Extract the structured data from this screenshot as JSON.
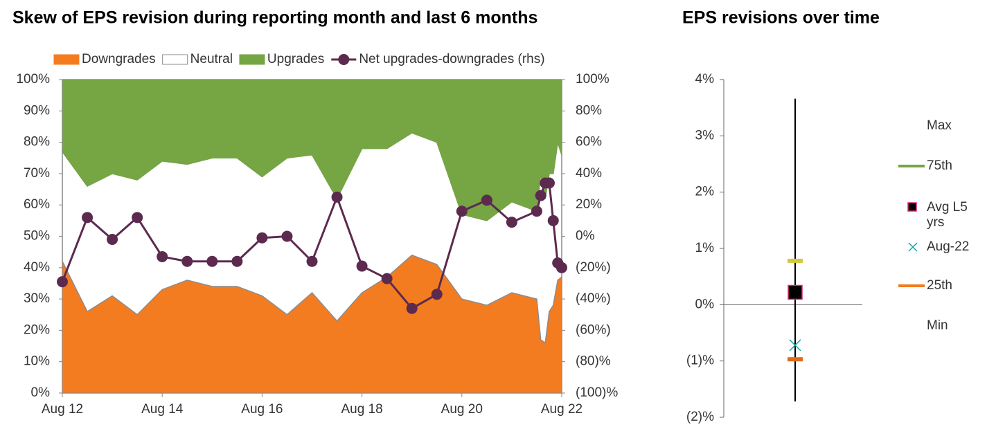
{
  "chart_data": [
    {
      "type": "stacked_area",
      "title": "Skew of EPS revision during reporting month and last 6 months",
      "x": [
        2012,
        2012.5,
        2013,
        2013.5,
        2014,
        2014.5,
        2015,
        2015.5,
        2016,
        2016.5,
        2017,
        2017.5,
        2018,
        2018.5,
        2019,
        2019.5,
        2020,
        2020.5,
        2021,
        2021.5,
        2021.58,
        2021.67,
        2021.75,
        2021.83,
        2021.92,
        2022
      ],
      "xlim": [
        2012,
        2022
      ],
      "xticks": [
        {
          "value": 2012,
          "label": "Aug 12"
        },
        {
          "value": 2014,
          "label": "Aug 14"
        },
        {
          "value": 2016,
          "label": "Aug 16"
        },
        {
          "value": 2018,
          "label": "Aug 18"
        },
        {
          "value": 2020,
          "label": "Aug 20"
        },
        {
          "value": 2022,
          "label": "Aug 22"
        }
      ],
      "ylim": [
        0,
        100
      ],
      "yticks": [
        {
          "value": 0,
          "label": "0%"
        },
        {
          "value": 10,
          "label": "10%"
        },
        {
          "value": 20,
          "label": "20%"
        },
        {
          "value": 30,
          "label": "30%"
        },
        {
          "value": 40,
          "label": "40%"
        },
        {
          "value": 50,
          "label": "50%"
        },
        {
          "value": 60,
          "label": "60%"
        },
        {
          "value": 70,
          "label": "70%"
        },
        {
          "value": 80,
          "label": "80%"
        },
        {
          "value": 90,
          "label": "90%"
        },
        {
          "value": 100,
          "label": "100%"
        }
      ],
      "y2lim": [
        -100,
        100
      ],
      "y2ticks": [
        {
          "value": -100,
          "label": "(100)%"
        },
        {
          "value": -80,
          "label": "(80)%"
        },
        {
          "value": -60,
          "label": "(60%)"
        },
        {
          "value": -40,
          "label": "(40%)"
        },
        {
          "value": -20,
          "label": "(20%)"
        },
        {
          "value": 0,
          "label": "0%"
        },
        {
          "value": 20,
          "label": "20%"
        },
        {
          "value": 40,
          "label": "40%"
        },
        {
          "value": 60,
          "label": "60%"
        },
        {
          "value": 80,
          "label": "80%"
        },
        {
          "value": 100,
          "label": "100%"
        }
      ],
      "series": [
        {
          "name": "Downgrades",
          "color": "#f47c20",
          "values": [
            42,
            26,
            31,
            25,
            33,
            36,
            34,
            34,
            31,
            25,
            32,
            23,
            32,
            37,
            44,
            41,
            30,
            28,
            32,
            30,
            17,
            16,
            26,
            28,
            36,
            37
          ]
        },
        {
          "name": "Neutral",
          "color": "#ffffff",
          "values": [
            35,
            40,
            39,
            43,
            41,
            37,
            41,
            41,
            38,
            50,
            44,
            39,
            46,
            41,
            39,
            39,
            27,
            27,
            29,
            28,
            53,
            46,
            44,
            42,
            44,
            39
          ]
        },
        {
          "name": "Upgrades",
          "color": "#76a543",
          "values": [
            23,
            34,
            30,
            32,
            26,
            27,
            25,
            25,
            31,
            25,
            24,
            38,
            22,
            22,
            17,
            20,
            43,
            45,
            39,
            42,
            30,
            38,
            30,
            30,
            20,
            24
          ]
        },
        {
          "name": "Net upgrades-downgrades (rhs)",
          "color": "#5c2a4f",
          "axis": "y2",
          "values": [
            -29,
            12,
            -2,
            12,
            -13,
            -16,
            -16,
            -16,
            -1,
            0,
            -16,
            25,
            -19,
            -27,
            -46,
            -37,
            16,
            23,
            9,
            16,
            26,
            34,
            34,
            10,
            -17,
            -20
          ]
        }
      ]
    },
    {
      "type": "range",
      "title": "EPS revisions over time",
      "ylim": [
        -2,
        4
      ],
      "yticks": [
        {
          "value": 4,
          "label": "4%"
        },
        {
          "value": 3,
          "label": "3%"
        },
        {
          "value": 2,
          "label": "2%"
        },
        {
          "value": 1,
          "label": "1%"
        },
        {
          "value": 0,
          "label": "0%"
        },
        {
          "value": -1,
          "label": "(1)%"
        },
        {
          "value": -2,
          "label": "(2)%"
        }
      ],
      "series": [
        {
          "name": "Max",
          "value": 3.66
        },
        {
          "name": "75th",
          "value": 0.78,
          "color": "#76a543",
          "marker_color": "#d4c93a"
        },
        {
          "name": "Avg L5 yrs",
          "value": 0.22,
          "color": "#e0287a"
        },
        {
          "name": "Aug-22",
          "value": -0.72,
          "color": "#1aa3a3"
        },
        {
          "name": "25th",
          "value": -0.97,
          "color": "#f47c20",
          "marker_color": "#e06a1e"
        },
        {
          "name": "Min",
          "value": -1.72
        }
      ]
    }
  ]
}
